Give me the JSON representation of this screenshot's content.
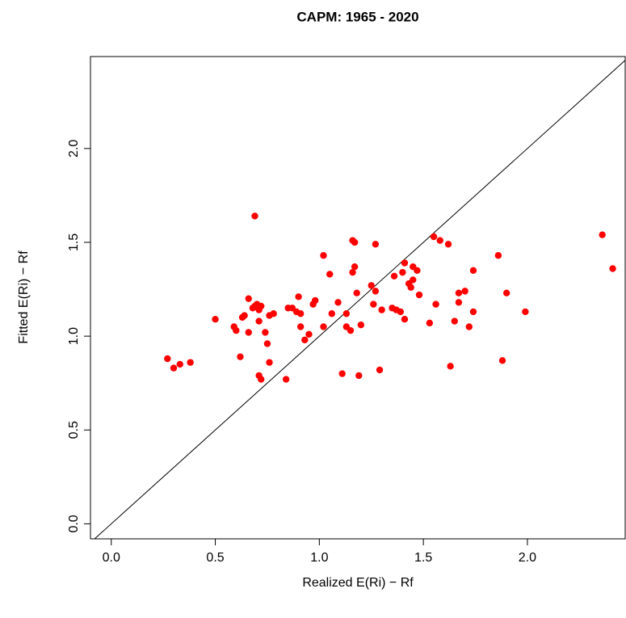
{
  "chart_data": {
    "type": "scatter",
    "title": "CAPM: 1965 - 2020",
    "xlabel": "Realized E(Ri) − Rf",
    "ylabel": "Fitted E(Ri) − Rf",
    "color": "#ff0000",
    "xlim": [
      -0.1,
      2.47
    ],
    "ylim": [
      -0.08,
      2.49
    ],
    "xticks": [
      {
        "value": 0,
        "label": "0.0"
      },
      {
        "value": 0.5,
        "label": "0.5"
      },
      {
        "value": 1,
        "label": "1.0"
      },
      {
        "value": 1.5,
        "label": "1.5"
      },
      {
        "value": 2,
        "label": "2.0"
      }
    ],
    "yticks": [
      {
        "value": 0,
        "label": "0.0"
      },
      {
        "value": 0.5,
        "label": "0.5"
      },
      {
        "value": 1,
        "label": "1.0"
      },
      {
        "value": 1.5,
        "label": "1.5"
      },
      {
        "value": 2,
        "label": "2.0"
      }
    ],
    "x": [
      0.27,
      0.3,
      0.33,
      0.38,
      0.5,
      0.59,
      0.6,
      0.62,
      0.63,
      0.64,
      0.66,
      0.66,
      0.68,
      0.69,
      0.69,
      0.7,
      0.71,
      0.71,
      0.71,
      0.72,
      0.72,
      0.74,
      0.76,
      0.75,
      0.76,
      0.78,
      0.84,
      0.85,
      0.87,
      0.89,
      0.9,
      0.91,
      0.91,
      0.93,
      0.95,
      0.97,
      0.98,
      1.02,
      1.02,
      1.05,
      1.06,
      1.09,
      1.11,
      1.13,
      1.13,
      1.15,
      1.16,
      1.16,
      1.17,
      1.17,
      1.18,
      1.19,
      1.2,
      1.25,
      1.26,
      1.27,
      1.27,
      1.29,
      1.3,
      1.35,
      1.36,
      1.37,
      1.39,
      1.4,
      1.41,
      1.41,
      1.43,
      1.44,
      1.45,
      1.45,
      1.47,
      1.48,
      1.53,
      1.55,
      1.56,
      1.58,
      1.62,
      1.63,
      1.65,
      1.67,
      1.67,
      1.7,
      1.72,
      1.74,
      1.74,
      1.86,
      1.88,
      1.9,
      1.99,
      2.36,
      2.41
    ],
    "y": [
      0.88,
      0.83,
      0.85,
      0.86,
      1.09,
      1.05,
      1.03,
      0.89,
      1.1,
      1.11,
      1.02,
      1.2,
      1.15,
      1.16,
      1.64,
      1.17,
      1.14,
      1.08,
      0.79,
      0.77,
      1.16,
      1.02,
      1.11,
      0.96,
      0.86,
      1.12,
      0.77,
      1.15,
      1.15,
      1.13,
      1.21,
      1.05,
      1.12,
      0.98,
      1.01,
      1.17,
      1.19,
      1.43,
      1.05,
      1.33,
      1.12,
      1.18,
      0.8,
      1.12,
      1.05,
      1.03,
      1.34,
      1.51,
      1.5,
      1.37,
      1.23,
      0.79,
      1.06,
      1.27,
      1.17,
      1.24,
      1.49,
      0.82,
      1.14,
      1.15,
      1.32,
      1.14,
      1.13,
      1.34,
      1.09,
      1.39,
      1.28,
      1.26,
      1.3,
      1.37,
      1.35,
      1.22,
      1.07,
      1.53,
      1.17,
      1.51,
      1.49,
      0.84,
      1.08,
      1.23,
      1.18,
      1.24,
      1.05,
      1.35,
      1.13,
      1.43,
      0.87,
      1.23,
      1.13,
      1.54,
      1.36
    ]
  }
}
